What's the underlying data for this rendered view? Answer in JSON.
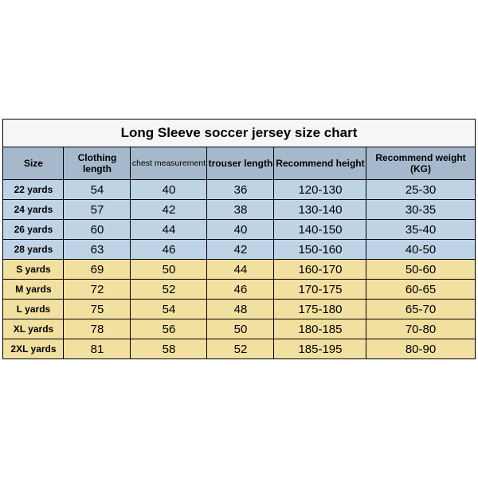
{
  "title": "Long Sleeve soccer jersey size chart",
  "columns": [
    "Size",
    "Clothing length",
    "chest measurement",
    "trouser length",
    "Recommend height",
    "Recommend weight (KG)"
  ],
  "column_small": [
    false,
    false,
    true,
    false,
    false,
    false
  ],
  "rows": [
    {
      "group": "blue",
      "cells": [
        "22 yards",
        "54",
        "40",
        "36",
        "120-130",
        "25-30"
      ]
    },
    {
      "group": "blue",
      "cells": [
        "24 yards",
        "57",
        "42",
        "38",
        "130-140",
        "30-35"
      ]
    },
    {
      "group": "blue",
      "cells": [
        "26 yards",
        "60",
        "44",
        "40",
        "140-150",
        "35-40"
      ]
    },
    {
      "group": "blue",
      "cells": [
        "28 yards",
        "63",
        "46",
        "42",
        "150-160",
        "40-50"
      ]
    },
    {
      "group": "yel",
      "cells": [
        "S yards",
        "69",
        "50",
        "44",
        "160-170",
        "50-60"
      ]
    },
    {
      "group": "yel",
      "cells": [
        "M yards",
        "72",
        "52",
        "46",
        "170-175",
        "60-65"
      ]
    },
    {
      "group": "yel",
      "cells": [
        "L yards",
        "75",
        "54",
        "48",
        "175-180",
        "65-70"
      ]
    },
    {
      "group": "yel",
      "cells": [
        "XL yards",
        "78",
        "56",
        "50",
        "180-185",
        "70-80"
      ]
    },
    {
      "group": "yel",
      "cells": [
        "2XL yards",
        "81",
        "58",
        "52",
        "185-195",
        "80-90"
      ]
    }
  ],
  "colors": {
    "header_bg": "#a6b9cc",
    "blue_bg": "#bfd3e6",
    "yellow_bg": "#f2e0a0",
    "title_bg": "#f6f6f6",
    "border": "#000000"
  }
}
